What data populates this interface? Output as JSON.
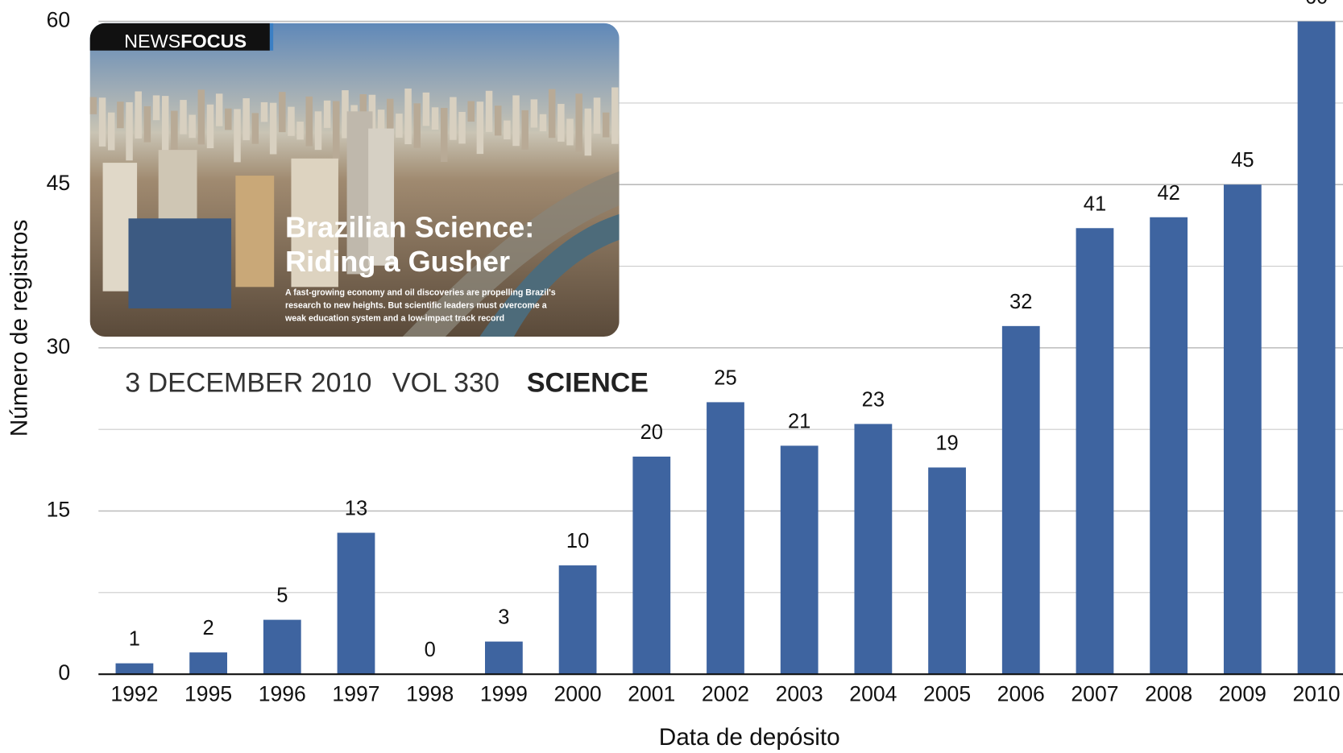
{
  "chart_data": {
    "type": "bar",
    "x_label": "Data de depósito",
    "y_label": "Número de registros",
    "categories": [
      "1992",
      "1995",
      "1996",
      "1997",
      "1998",
      "1999",
      "2000",
      "2001",
      "2002",
      "2003",
      "2004",
      "2005",
      "2006",
      "2007",
      "2008",
      "2009",
      "2010"
    ],
    "values": [
      1,
      2,
      5,
      13,
      0,
      3,
      10,
      20,
      25,
      21,
      23,
      19,
      32,
      41,
      42,
      45,
      60
    ],
    "color": "#3e64a0",
    "ylim": [
      0,
      60
    ],
    "yticks": [
      0,
      15,
      30,
      45,
      60
    ],
    "grid": true,
    "inset": {
      "section_a": "NEWS",
      "section_b": "FOCUS",
      "headline": [
        "Brazilian Science:",
        "Riding a Gusher"
      ],
      "deck": [
        "A fast-growing economy and oil discoveries are propelling Brazil's",
        "research to new heights. But scientific leaders must overcome a",
        "weak education system and a low-impact track record"
      ],
      "date": "3 DECEMBER 2010",
      "volume": "VOL 330",
      "journal": "SCIENCE"
    }
  }
}
